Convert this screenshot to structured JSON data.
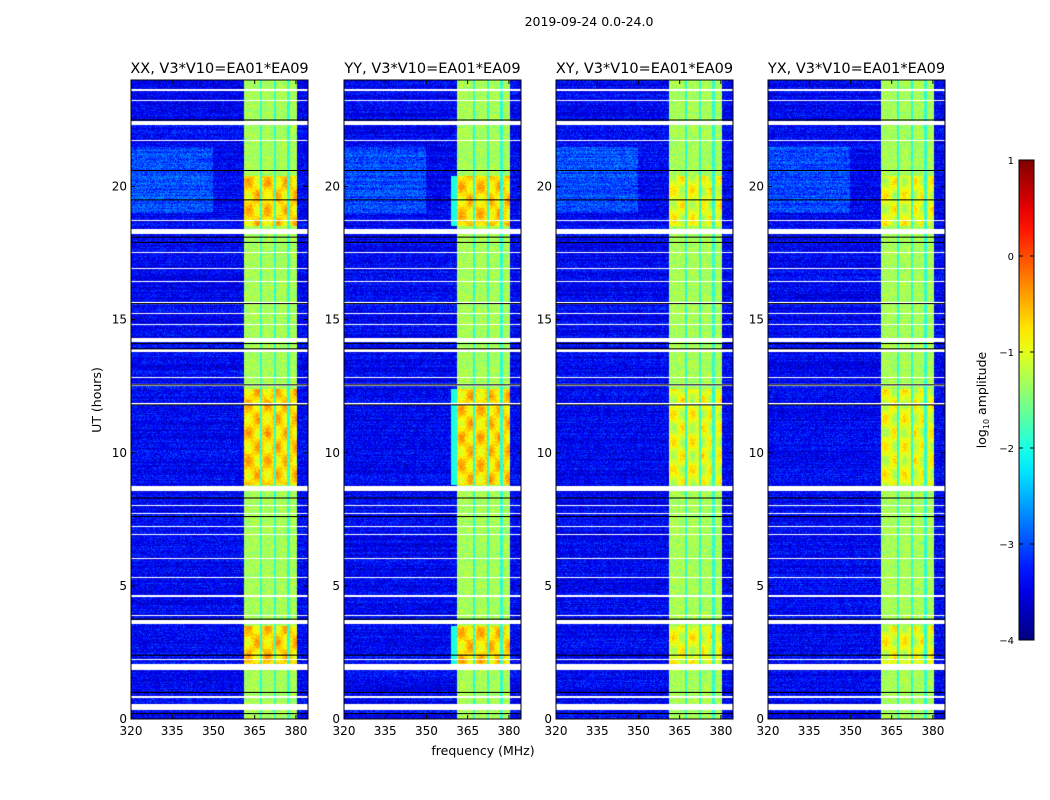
{
  "chart_data": {
    "type": "heatmap",
    "title": "2019-09-24 0.0-24.0",
    "xlabel": "frequency (MHz)",
    "ylabel": "UT (hours)",
    "xlim": [
      320,
      384.4
    ],
    "ylim": [
      0,
      24
    ],
    "xticks": [
      320,
      335,
      350,
      365,
      380
    ],
    "yticks": [
      0,
      5,
      10,
      15,
      20
    ],
    "colorbar": {
      "label": "log10 amplitude",
      "label_main": "log",
      "label_sub": "10",
      "label_rest": " amplitude",
      "colormap": "jet",
      "range": [
        -4,
        1
      ],
      "ticks": [
        1,
        0,
        -1,
        -2,
        -3,
        -4
      ],
      "tick_labels": [
        "1",
        "0",
        "−1",
        "−2",
        "−3",
        "−4"
      ]
    },
    "panels": [
      {
        "title": "XX, V3*V10=EA01*EA09"
      },
      {
        "title": "YY, V3*V10=EA01*EA09"
      },
      {
        "title": "XY, V3*V10=EA01*EA09"
      },
      {
        "title": "YX, V3*V10=EA01*EA09"
      }
    ],
    "background_level": -3.4,
    "rfi_band_mhz": [
      361,
      380.5
    ],
    "rfi_band_level": -1.3,
    "rfi_gap_channels_mhz": [
      367.3,
      372.3,
      377.3
    ],
    "hot_time_ranges_hours": [
      [
        18.5,
        20.4
      ],
      [
        8.8,
        12.4
      ],
      [
        2.0,
        3.5
      ]
    ],
    "hot_level": -0.4,
    "flagged_time_ranges_hours": [
      [
        0.35,
        0.55
      ],
      [
        0.8,
        0.85
      ],
      [
        1.85,
        2.05
      ],
      [
        2.2,
        2.25
      ],
      [
        3.55,
        3.7
      ],
      [
        3.85,
        3.9
      ],
      [
        4.6,
        4.65
      ],
      [
        5.3,
        5.35
      ],
      [
        6.0,
        6.05
      ],
      [
        6.9,
        6.95
      ],
      [
        7.2,
        7.25
      ],
      [
        7.7,
        7.75
      ],
      [
        8.0,
        8.05
      ],
      [
        8.55,
        8.75
      ],
      [
        11.8,
        11.85
      ],
      [
        12.5,
        12.6
      ],
      [
        12.8,
        12.85
      ],
      [
        13.8,
        13.9
      ],
      [
        14.15,
        14.3
      ],
      [
        14.8,
        14.85
      ],
      [
        15.2,
        15.25
      ],
      [
        15.6,
        15.65
      ],
      [
        16.4,
        16.45
      ],
      [
        16.9,
        16.95
      ],
      [
        17.5,
        17.55
      ],
      [
        18.2,
        18.4
      ],
      [
        18.7,
        18.75
      ],
      [
        21.7,
        21.75
      ],
      [
        22.3,
        22.45
      ],
      [
        23.2,
        23.25
      ],
      [
        23.6,
        23.65
      ]
    ],
    "black_line_times_hours": [
      0.2,
      1.0,
      2.4,
      3.75,
      7.6,
      8.3,
      11.8,
      12.55,
      13.9,
      14.1,
      15.6,
      17.9,
      18.1,
      19.5,
      20.6,
      22.5
    ]
  }
}
